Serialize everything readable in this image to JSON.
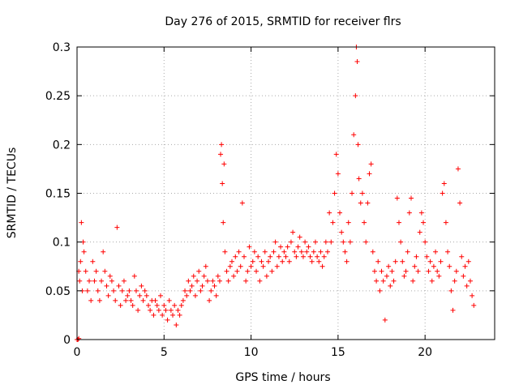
{
  "chart_data": {
    "type": "scatter",
    "title": "Day 276 of 2015, SRMTID for receiver flrs",
    "xlabel": "GPS time / hours",
    "ylabel": "SRMTID / TECUs",
    "xlim": [
      0,
      24
    ],
    "ylim": [
      0,
      0.3
    ],
    "x_ticks": [
      0,
      5,
      10,
      15,
      20
    ],
    "x_tick_labels": [
      "0",
      "5",
      "10",
      "15",
      "20"
    ],
    "y_ticks": [
      0,
      0.05,
      0.1,
      0.15,
      0.2,
      0.25,
      0.3
    ],
    "y_tick_labels": [
      "0",
      "0.05",
      "0.1",
      "0.15",
      "0.2",
      "0.25",
      "0.3"
    ],
    "grid": true,
    "legend": "none",
    "marker": "plus",
    "series_color": "#ff0000",
    "series": [
      {
        "points": [
          [
            0.0,
            0.0
          ],
          [
            0.05,
            0.0
          ],
          [
            0.1,
            0.001
          ],
          [
            0.1,
            0.07
          ],
          [
            0.15,
            0.06
          ],
          [
            0.2,
            0.08
          ],
          [
            0.25,
            0.12
          ],
          [
            0.3,
            0.05
          ],
          [
            0.35,
            0.1
          ],
          [
            0.4,
            0.09
          ],
          [
            0.5,
            0.07
          ],
          [
            0.6,
            0.05
          ],
          [
            0.7,
            0.06
          ],
          [
            0.8,
            0.04
          ],
          [
            0.9,
            0.08
          ],
          [
            1.0,
            0.06
          ],
          [
            1.1,
            0.07
          ],
          [
            1.2,
            0.05
          ],
          [
            1.3,
            0.04
          ],
          [
            1.4,
            0.06
          ],
          [
            1.5,
            0.09
          ],
          [
            1.6,
            0.07
          ],
          [
            1.7,
            0.055
          ],
          [
            1.8,
            0.045
          ],
          [
            1.9,
            0.065
          ],
          [
            2.0,
            0.06
          ],
          [
            2.1,
            0.05
          ],
          [
            2.2,
            0.04
          ],
          [
            2.3,
            0.115
          ],
          [
            2.4,
            0.055
          ],
          [
            2.5,
            0.035
          ],
          [
            2.6,
            0.05
          ],
          [
            2.7,
            0.06
          ],
          [
            2.8,
            0.04
          ],
          [
            2.9,
            0.045
          ],
          [
            3.0,
            0.05
          ],
          [
            3.1,
            0.04
          ],
          [
            3.2,
            0.035
          ],
          [
            3.3,
            0.065
          ],
          [
            3.4,
            0.05
          ],
          [
            3.5,
            0.03
          ],
          [
            3.6,
            0.045
          ],
          [
            3.7,
            0.055
          ],
          [
            3.8,
            0.04
          ],
          [
            3.9,
            0.05
          ],
          [
            4.0,
            0.045
          ],
          [
            4.1,
            0.035
          ],
          [
            4.2,
            0.03
          ],
          [
            4.3,
            0.04
          ],
          [
            4.4,
            0.025
          ],
          [
            4.5,
            0.04
          ],
          [
            4.6,
            0.035
          ],
          [
            4.7,
            0.03
          ],
          [
            4.8,
            0.045
          ],
          [
            4.9,
            0.025
          ],
          [
            5.0,
            0.035
          ],
          [
            5.1,
            0.03
          ],
          [
            5.2,
            0.02
          ],
          [
            5.3,
            0.04
          ],
          [
            5.4,
            0.03
          ],
          [
            5.5,
            0.025
          ],
          [
            5.6,
            0.035
          ],
          [
            5.7,
            0.015
          ],
          [
            5.8,
            0.03
          ],
          [
            5.9,
            0.025
          ],
          [
            6.0,
            0.035
          ],
          [
            6.1,
            0.04
          ],
          [
            6.2,
            0.05
          ],
          [
            6.3,
            0.045
          ],
          [
            6.4,
            0.06
          ],
          [
            6.5,
            0.05
          ],
          [
            6.6,
            0.055
          ],
          [
            6.7,
            0.065
          ],
          [
            6.8,
            0.045
          ],
          [
            6.9,
            0.06
          ],
          [
            7.0,
            0.07
          ],
          [
            7.1,
            0.05
          ],
          [
            7.2,
            0.055
          ],
          [
            7.3,
            0.065
          ],
          [
            7.4,
            0.075
          ],
          [
            7.5,
            0.06
          ],
          [
            7.6,
            0.04
          ],
          [
            7.7,
            0.05
          ],
          [
            7.8,
            0.06
          ],
          [
            7.9,
            0.055
          ],
          [
            8.0,
            0.045
          ],
          [
            8.1,
            0.065
          ],
          [
            8.2,
            0.06
          ],
          [
            8.25,
            0.19
          ],
          [
            8.3,
            0.2
          ],
          [
            8.35,
            0.16
          ],
          [
            8.4,
            0.12
          ],
          [
            8.45,
            0.18
          ],
          [
            8.5,
            0.09
          ],
          [
            8.6,
            0.07
          ],
          [
            8.7,
            0.06
          ],
          [
            8.8,
            0.075
          ],
          [
            8.9,
            0.08
          ],
          [
            9.0,
            0.065
          ],
          [
            9.1,
            0.085
          ],
          [
            9.2,
            0.07
          ],
          [
            9.3,
            0.09
          ],
          [
            9.4,
            0.075
          ],
          [
            9.5,
            0.14
          ],
          [
            9.6,
            0.085
          ],
          [
            9.7,
            0.06
          ],
          [
            9.8,
            0.07
          ],
          [
            9.9,
            0.095
          ],
          [
            10.0,
            0.075
          ],
          [
            10.1,
            0.08
          ],
          [
            10.2,
            0.09
          ],
          [
            10.3,
            0.07
          ],
          [
            10.4,
            0.085
          ],
          [
            10.5,
            0.06
          ],
          [
            10.6,
            0.08
          ],
          [
            10.7,
            0.075
          ],
          [
            10.8,
            0.09
          ],
          [
            10.9,
            0.065
          ],
          [
            11.0,
            0.08
          ],
          [
            11.1,
            0.085
          ],
          [
            11.2,
            0.07
          ],
          [
            11.3,
            0.09
          ],
          [
            11.4,
            0.1
          ],
          [
            11.5,
            0.075
          ],
          [
            11.6,
            0.085
          ],
          [
            11.7,
            0.095
          ],
          [
            11.8,
            0.08
          ],
          [
            11.9,
            0.09
          ],
          [
            12.0,
            0.085
          ],
          [
            12.1,
            0.095
          ],
          [
            12.2,
            0.08
          ],
          [
            12.3,
            0.1
          ],
          [
            12.4,
            0.11
          ],
          [
            12.5,
            0.09
          ],
          [
            12.6,
            0.085
          ],
          [
            12.7,
            0.095
          ],
          [
            12.8,
            0.105
          ],
          [
            12.9,
            0.09
          ],
          [
            13.0,
            0.085
          ],
          [
            13.1,
            0.1
          ],
          [
            13.2,
            0.09
          ],
          [
            13.3,
            0.095
          ],
          [
            13.4,
            0.085
          ],
          [
            13.5,
            0.08
          ],
          [
            13.6,
            0.09
          ],
          [
            13.7,
            0.1
          ],
          [
            13.8,
            0.085
          ],
          [
            13.9,
            0.08
          ],
          [
            14.0,
            0.09
          ],
          [
            14.1,
            0.075
          ],
          [
            14.2,
            0.085
          ],
          [
            14.3,
            0.1
          ],
          [
            14.4,
            0.09
          ],
          [
            14.5,
            0.13
          ],
          [
            14.6,
            0.1
          ],
          [
            14.7,
            0.12
          ],
          [
            14.8,
            0.15
          ],
          [
            14.9,
            0.19
          ],
          [
            15.0,
            0.17
          ],
          [
            15.1,
            0.13
          ],
          [
            15.2,
            0.11
          ],
          [
            15.3,
            0.1
          ],
          [
            15.4,
            0.09
          ],
          [
            15.5,
            0.08
          ],
          [
            15.6,
            0.12
          ],
          [
            15.7,
            0.1
          ],
          [
            15.8,
            0.15
          ],
          [
            15.9,
            0.21
          ],
          [
            16.0,
            0.25
          ],
          [
            16.05,
            0.3
          ],
          [
            16.1,
            0.285
          ],
          [
            16.15,
            0.2
          ],
          [
            16.2,
            0.165
          ],
          [
            16.3,
            0.14
          ],
          [
            16.4,
            0.15
          ],
          [
            16.5,
            0.12
          ],
          [
            16.6,
            0.1
          ],
          [
            16.7,
            0.14
          ],
          [
            16.8,
            0.17
          ],
          [
            16.9,
            0.18
          ],
          [
            17.0,
            0.09
          ],
          [
            17.1,
            0.07
          ],
          [
            17.2,
            0.06
          ],
          [
            17.3,
            0.08
          ],
          [
            17.4,
            0.05
          ],
          [
            17.5,
            0.07
          ],
          [
            17.6,
            0.06
          ],
          [
            17.7,
            0.02
          ],
          [
            17.8,
            0.065
          ],
          [
            17.9,
            0.075
          ],
          [
            18.0,
            0.055
          ],
          [
            18.1,
            0.07
          ],
          [
            18.2,
            0.06
          ],
          [
            18.3,
            0.08
          ],
          [
            18.4,
            0.145
          ],
          [
            18.5,
            0.12
          ],
          [
            18.6,
            0.1
          ],
          [
            18.7,
            0.08
          ],
          [
            18.8,
            0.065
          ],
          [
            18.9,
            0.07
          ],
          [
            19.0,
            0.09
          ],
          [
            19.1,
            0.13
          ],
          [
            19.2,
            0.145
          ],
          [
            19.3,
            0.06
          ],
          [
            19.4,
            0.075
          ],
          [
            19.5,
            0.085
          ],
          [
            19.6,
            0.07
          ],
          [
            19.7,
            0.11
          ],
          [
            19.8,
            0.13
          ],
          [
            19.9,
            0.12
          ],
          [
            20.0,
            0.1
          ],
          [
            20.1,
            0.085
          ],
          [
            20.2,
            0.07
          ],
          [
            20.3,
            0.08
          ],
          [
            20.4,
            0.06
          ],
          [
            20.5,
            0.075
          ],
          [
            20.6,
            0.09
          ],
          [
            20.7,
            0.07
          ],
          [
            20.8,
            0.065
          ],
          [
            20.9,
            0.08
          ],
          [
            21.0,
            0.15
          ],
          [
            21.1,
            0.16
          ],
          [
            21.2,
            0.12
          ],
          [
            21.3,
            0.09
          ],
          [
            21.4,
            0.075
          ],
          [
            21.5,
            0.05
          ],
          [
            21.6,
            0.03
          ],
          [
            21.7,
            0.06
          ],
          [
            21.8,
            0.07
          ],
          [
            21.9,
            0.175
          ],
          [
            22.0,
            0.14
          ],
          [
            22.1,
            0.085
          ],
          [
            22.2,
            0.065
          ],
          [
            22.3,
            0.075
          ],
          [
            22.4,
            0.055
          ],
          [
            22.5,
            0.08
          ],
          [
            22.6,
            0.06
          ],
          [
            22.7,
            0.045
          ],
          [
            22.8,
            0.035
          ]
        ]
      }
    ]
  }
}
